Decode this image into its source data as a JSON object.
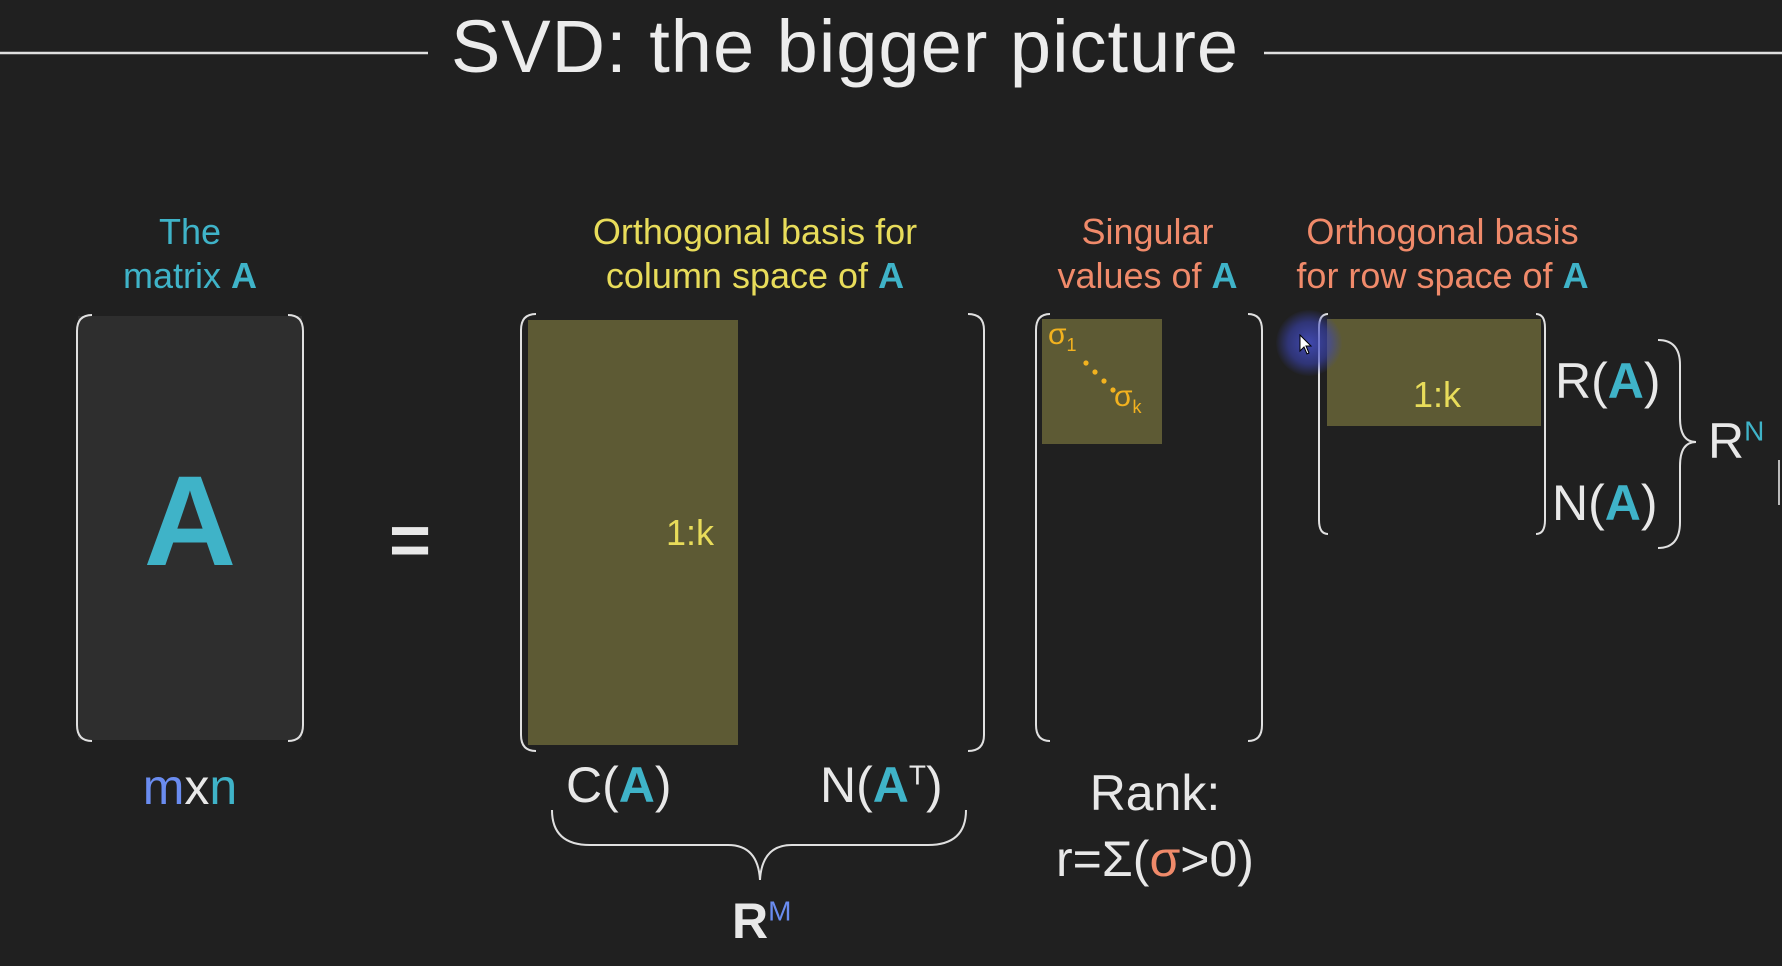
{
  "title": "SVD: the bigger picture",
  "colors": {
    "background": "#202020",
    "teal": "#3fb3c8",
    "yellow": "#e8dc5a",
    "salmon": "#f08a6a",
    "blue": "#6a8cf0",
    "orange": "#f2b21f",
    "block_fill": "#5d5a34",
    "matrix_fill": "#2e2e2e"
  },
  "matrix_a": {
    "caption_line1": "The",
    "caption_line2": "matrix",
    "caption_bold": "A",
    "letter": "A",
    "dim_m": "m",
    "dim_x": "x",
    "dim_n": "n"
  },
  "equals": "=",
  "u_matrix": {
    "caption_line1": "Orthogonal basis for",
    "caption_line2": "column space of",
    "caption_bold": "A",
    "block_label": "1:k",
    "col_space": {
      "prefix": "C(",
      "bold": "A",
      "suffix": ")"
    },
    "left_null": {
      "prefix": "N(",
      "bold": "A",
      "sup": "T",
      "suffix": ")"
    },
    "space_R": "R",
    "space_sup": "M"
  },
  "sigma_matrix": {
    "caption_line1": "Singular",
    "caption_line2": "values of",
    "caption_bold": "A",
    "sigma": "σ",
    "sub_first": "1",
    "sub_last": "k",
    "rank_line1": "Rank:",
    "rank_prefix": "r=Σ(",
    "rank_sigma": "σ",
    "rank_suffix": ">0)"
  },
  "v_matrix": {
    "caption_line1": "Orthogonal basis",
    "caption_line2": "for row space of",
    "caption_bold": "A",
    "block_label": "1:k",
    "row_space": {
      "prefix": "R(",
      "bold": "A",
      "suffix": ")"
    },
    "null_space": {
      "prefix": "N(",
      "bold": "A",
      "suffix": ")"
    },
    "space_R": "R",
    "space_sup": "N"
  }
}
